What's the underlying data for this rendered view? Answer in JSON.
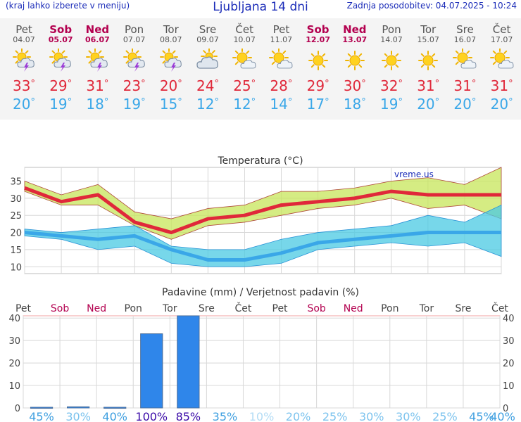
{
  "header": {
    "menu_hint": "(kraj lahko izberete v meniju)",
    "title": "Ljubljana 14 dni",
    "updated": "Zadnja posodobitev: 04.07.2025 - 10:24"
  },
  "days": [
    {
      "name": "Pet",
      "date": "04.07",
      "weekend": false,
      "icon": "sun-cloud-storm-icon",
      "tmax": "33",
      "tmin": "20"
    },
    {
      "name": "Sob",
      "date": "05.07",
      "weekend": true,
      "icon": "sun-cloud-storm-icon",
      "tmax": "29",
      "tmin": "19"
    },
    {
      "name": "Ned",
      "date": "06.07",
      "weekend": true,
      "icon": "sun-cloud-storm-icon",
      "tmax": "31",
      "tmin": "18"
    },
    {
      "name": "Pon",
      "date": "07.07",
      "weekend": false,
      "icon": "sun-cloud-storm-icon",
      "tmax": "23",
      "tmin": "19"
    },
    {
      "name": "Tor",
      "date": "08.07",
      "weekend": false,
      "icon": "sun-cloud-storm-icon",
      "tmax": "20",
      "tmin": "15"
    },
    {
      "name": "Sre",
      "date": "09.07",
      "weekend": false,
      "icon": "sun-cloud-icon",
      "tmax": "24",
      "tmin": "12"
    },
    {
      "name": "Čet",
      "date": "10.07",
      "weekend": false,
      "icon": "sun-small-cloud-icon",
      "tmax": "25",
      "tmin": "12"
    },
    {
      "name": "Pet",
      "date": "11.07",
      "weekend": false,
      "icon": "sun-small-cloud-icon",
      "tmax": "28",
      "tmin": "14"
    },
    {
      "name": "Sob",
      "date": "12.07",
      "weekend": true,
      "icon": "sun-icon",
      "tmax": "29",
      "tmin": "17"
    },
    {
      "name": "Ned",
      "date": "13.07",
      "weekend": true,
      "icon": "sun-icon",
      "tmax": "30",
      "tmin": "18"
    },
    {
      "name": "Pon",
      "date": "14.07",
      "weekend": false,
      "icon": "sun-icon",
      "tmax": "32",
      "tmin": "19"
    },
    {
      "name": "Tor",
      "date": "15.07",
      "weekend": false,
      "icon": "sun-icon",
      "tmax": "31",
      "tmin": "20"
    },
    {
      "name": "Sre",
      "date": "16.07",
      "weekend": false,
      "icon": "sun-small-cloud-icon",
      "tmax": "31",
      "tmin": "20"
    },
    {
      "name": "Čet",
      "date": "17.07",
      "weekend": false,
      "icon": "sun-small-cloud-icon",
      "tmax": "31",
      "tmin": "20"
    }
  ],
  "colors": {
    "weekday": "#555555",
    "weekend": "#b3004f",
    "tmax": "#e0283a",
    "tmin": "#3aa7e8",
    "band_max": "#c7e55a",
    "band_min": "#49c9e3",
    "bar": "#2f86ea",
    "grid": "#d8d8d8"
  },
  "chart_data": [
    {
      "type": "line",
      "title": "Temperatura (°C)",
      "watermark": "vreme.us",
      "ylim": [
        8,
        39
      ],
      "yticks": [
        10,
        15,
        20,
        25,
        30,
        35
      ],
      "x": [
        "04.07",
        "05.07",
        "06.07",
        "07.07",
        "08.07",
        "09.07",
        "10.07",
        "11.07",
        "12.07",
        "13.07",
        "14.07",
        "15.07",
        "16.07",
        "17.07"
      ],
      "series": [
        {
          "role": "tmax",
          "values": [
            33,
            29,
            31,
            23,
            20,
            24,
            25,
            28,
            29,
            30,
            32,
            31,
            31,
            31
          ]
        },
        {
          "role": "tmin",
          "values": [
            20,
            19,
            18,
            19,
            15,
            12,
            12,
            14,
            17,
            18,
            19,
            20,
            20,
            20
          ]
        },
        {
          "role": "tmax_upper",
          "values": [
            35,
            31,
            34,
            26,
            24,
            27,
            28,
            32,
            32,
            33,
            35,
            36,
            34,
            39
          ]
        },
        {
          "role": "tmax_lower",
          "values": [
            32,
            28,
            28,
            22,
            18,
            22,
            23,
            25,
            27,
            28,
            30,
            27,
            28,
            24
          ]
        },
        {
          "role": "tmin_upper",
          "values": [
            21,
            20,
            21,
            22,
            16,
            15,
            15,
            18,
            20,
            21,
            22,
            25,
            23,
            28
          ]
        },
        {
          "role": "tmin_lower",
          "values": [
            19,
            18,
            15,
            16,
            11,
            10,
            10,
            11,
            15,
            16,
            17,
            16,
            17,
            13
          ]
        }
      ]
    },
    {
      "type": "bar",
      "title": "Padavine (mm) / Verjetnost padavin (%)",
      "ylim": [
        0,
        41
      ],
      "yticks": [
        0,
        10,
        20,
        30,
        40
      ],
      "categories": [
        "Pet",
        "Sob",
        "Ned",
        "Pon",
        "Tor",
        "Sre",
        "Čet",
        "Pet",
        "Sob",
        "Ned",
        "Pon",
        "Tor",
        "Sre",
        "Čet"
      ],
      "weekend": [
        false,
        true,
        true,
        false,
        false,
        false,
        false,
        false,
        true,
        true,
        false,
        false,
        false,
        false
      ],
      "values": [
        0.3,
        0.5,
        0.3,
        33,
        41,
        0,
        0,
        0,
        0,
        0,
        0,
        0,
        0,
        0
      ],
      "probability": [
        "45%",
        "30%",
        "40%",
        "100%",
        "85%",
        "35%",
        "10%",
        "20%",
        "25%",
        "30%",
        "30%",
        "25%",
        "45%",
        "40%"
      ],
      "probability_values": [
        45,
        30,
        40,
        100,
        85,
        35,
        10,
        20,
        25,
        30,
        30,
        25,
        45,
        40
      ]
    }
  ]
}
